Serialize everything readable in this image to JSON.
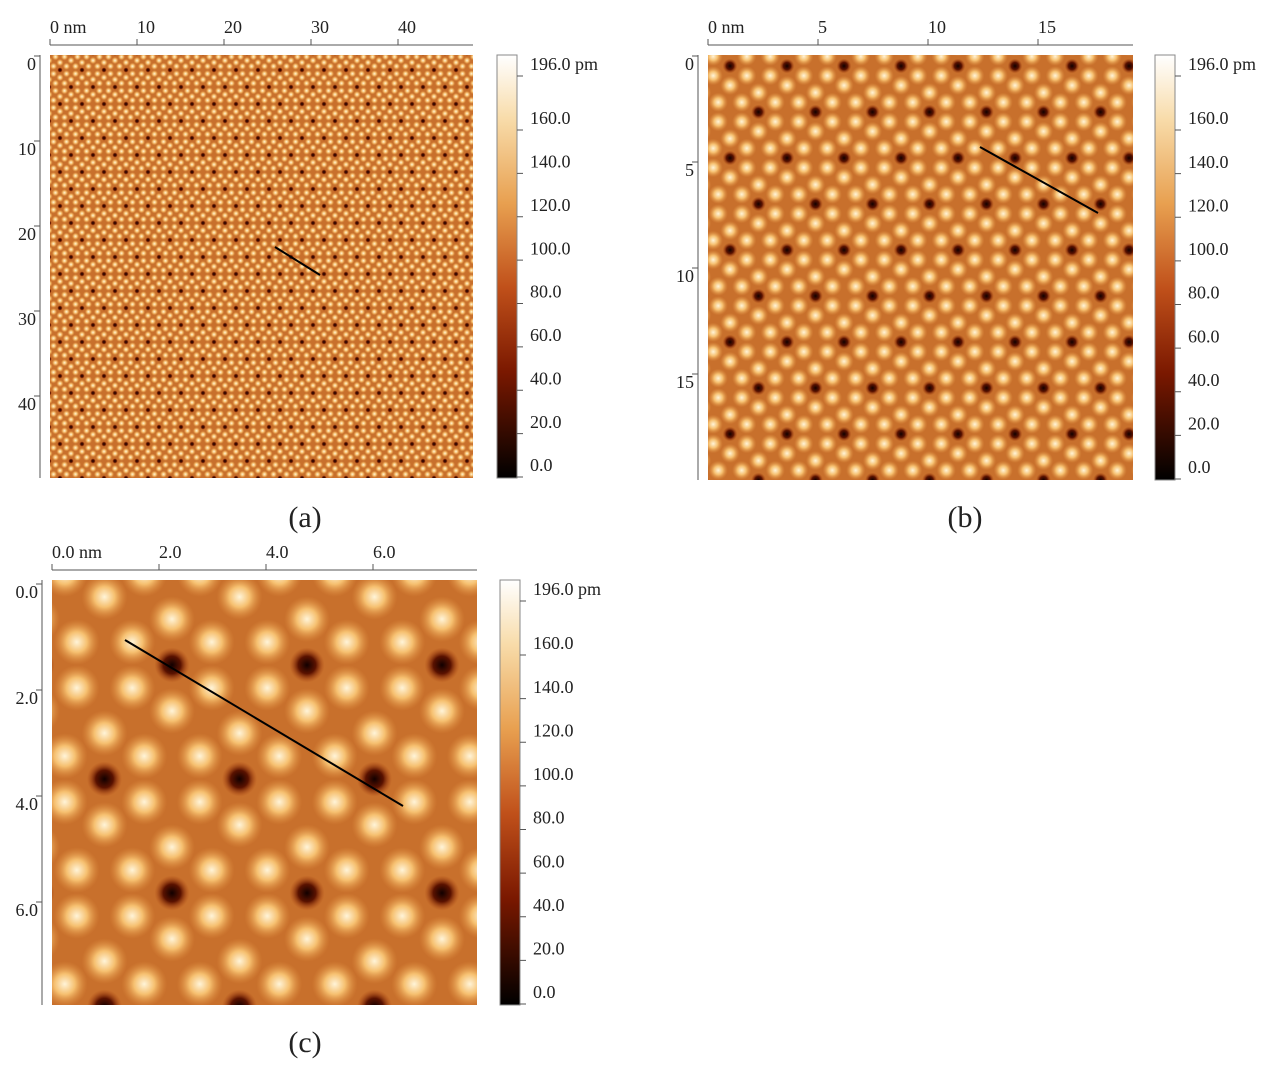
{
  "panels": [
    {
      "label": "(a)",
      "x_ticks": [
        "0 nm",
        "10",
        "20",
        "30",
        "40"
      ],
      "y_ticks": [
        "0",
        "10",
        "20",
        "30",
        "40"
      ],
      "colorbar_ticks": [
        "196.0 pm",
        "160.0",
        "140.0",
        "120.0",
        "100.0",
        "80.0",
        "60.0",
        "40.0",
        "20.0",
        "0.0"
      ]
    },
    {
      "label": "(b)",
      "x_ticks": [
        "0 nm",
        "5",
        "10",
        "15"
      ],
      "y_ticks": [
        "0",
        "5",
        "10",
        "15"
      ],
      "colorbar_ticks": [
        "196.0 pm",
        "160.0",
        "140.0",
        "120.0",
        "100.0",
        "80.0",
        "60.0",
        "40.0",
        "20.0",
        "0.0"
      ]
    },
    {
      "label": "(c)",
      "x_ticks": [
        "0.0 nm",
        "2.0",
        "4.0",
        "6.0"
      ],
      "y_ticks": [
        "0.0",
        "2.0",
        "4.0",
        "6.0"
      ],
      "colorbar_ticks": [
        "196.0 pm",
        "160.0",
        "140.0",
        "120.0",
        "100.0",
        "80.0",
        "60.0",
        "40.0",
        "20.0",
        "0.0"
      ]
    }
  ]
}
